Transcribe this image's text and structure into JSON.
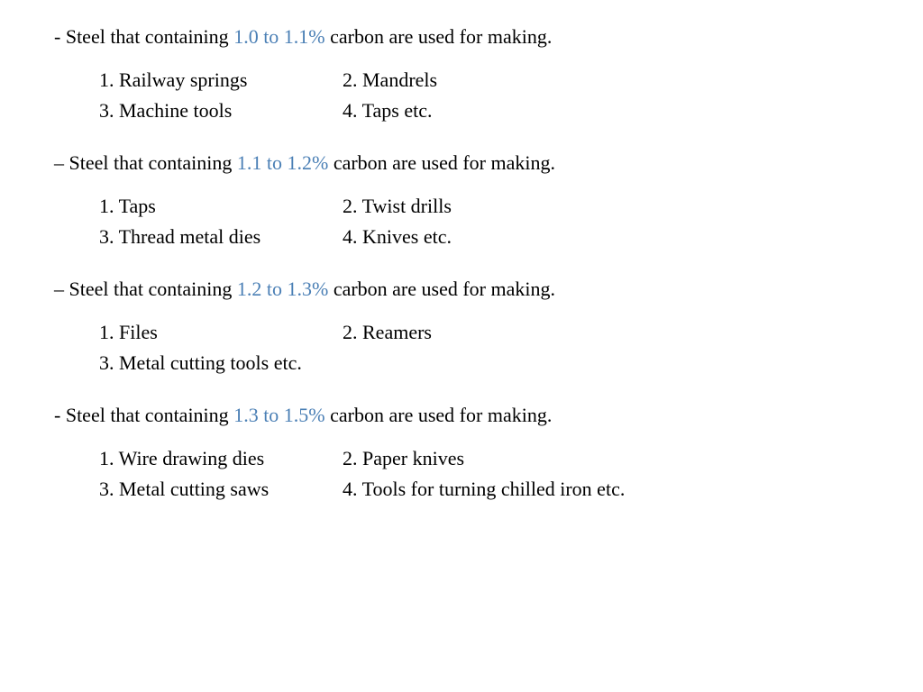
{
  "text_color": "#000000",
  "highlight_color": "#4a7fb5",
  "background_color": "#ffffff",
  "font_size": 22,
  "sections": [
    {
      "bullet": "- ",
      "heading_pre": "Steel that containing ",
      "highlight": "1.0 to 1.1%",
      "heading_post": " carbon are used for making.",
      "items": [
        "1. Railway springs",
        "2. Mandrels",
        "3. Machine tools",
        "4. Taps etc."
      ]
    },
    {
      "bullet": "– ",
      "heading_pre": "Steel that containing ",
      "highlight": "1.1 to 1.2%",
      "heading_post": " carbon are used for making.",
      "items": [
        "1. Taps",
        "2. Twist drills",
        "3. Thread metal dies",
        "4. Knives etc."
      ]
    },
    {
      "bullet": "– ",
      "heading_pre": "Steel that containing ",
      "highlight": "1.2 to 1.3%",
      "heading_post": " carbon are used for making.",
      "items": [
        "1. Files",
        "2. Reamers",
        "3. Metal cutting tools etc.",
        ""
      ]
    },
    {
      "bullet": "- ",
      "heading_pre": "Steel that containing ",
      "highlight": "1.3 to 1.5%",
      "heading_post": " carbon are used for making.",
      "items": [
        "1. Wire drawing dies",
        "2. Paper knives",
        "3. Metal cutting saws",
        "4. Tools for turning chilled iron etc."
      ]
    }
  ]
}
